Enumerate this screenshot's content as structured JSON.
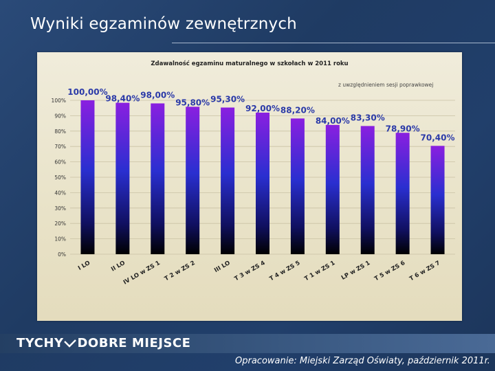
{
  "slide": {
    "title": "Wyniki egzaminów zewnętrznych",
    "brand": "TYCHY DOBRE MIEJSCE",
    "brand_left": "TYCHY",
    "brand_right": "DOBRE MIEJSCE",
    "credit": "Opracowanie: Miejski Zarząd Oświaty, październik 2011r."
  },
  "chart_data": {
    "type": "bar",
    "title": "Zdawalność  egzaminu  maturalnego w szkołach w 2011 roku",
    "subtitle": "z uwzględnieniem sesji poprawkowej",
    "categories": [
      "I LO",
      "II LO",
      "IV LO w ZS 1",
      "T 2 w ZS 2",
      "III LO",
      "T 3 w ZS 4",
      "T 4 w ZS 5",
      "T 1 w ZS 1",
      "LP w ZS 1",
      "T 5 w ZS 6",
      "T 6 w ZS 7"
    ],
    "values": [
      100.0,
      98.4,
      98.0,
      95.8,
      95.3,
      92.0,
      88.2,
      84.0,
      83.3,
      78.9,
      70.4
    ],
    "data_labels": [
      "100,00%",
      "98,40%",
      "98,00%",
      "95,80%",
      "95,30%",
      "92,00%",
      "88,20%",
      "84,00%",
      "83,30%",
      "78,90%",
      "70,40%"
    ],
    "yticks": [
      "0%",
      "10%",
      "20%",
      "30%",
      "40%",
      "50%",
      "60%",
      "70%",
      "80%",
      "90%",
      "100%"
    ],
    "ylim": [
      0,
      100
    ],
    "grid": true,
    "colors": {
      "bar_top": "#8a1fe0",
      "bar_mid": "#2a2fd0",
      "bar_bottom": "#000000",
      "label": "#2b3aa8",
      "grid": "#c9c1a4"
    }
  }
}
